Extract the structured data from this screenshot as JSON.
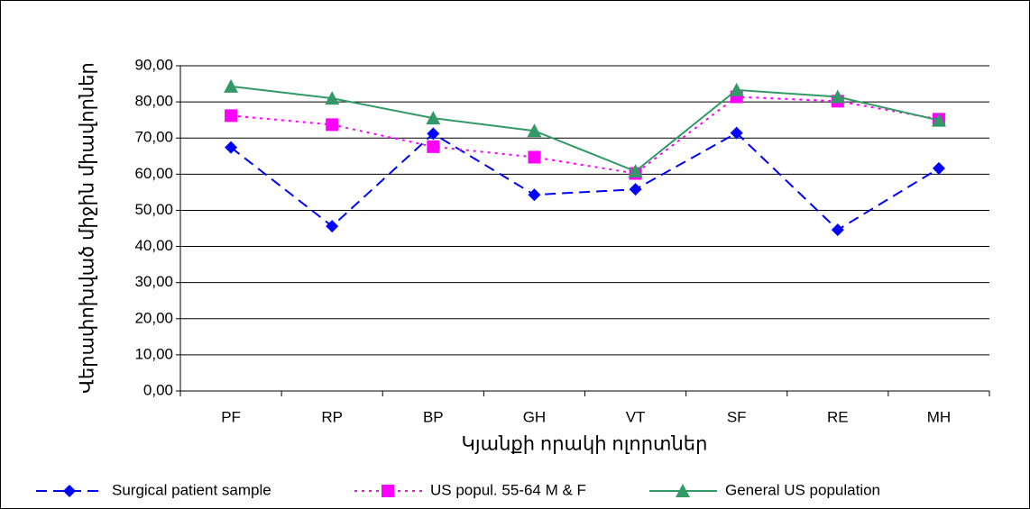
{
  "chart_data": {
    "type": "line",
    "y_label": "Վերափոխված միջին միավորներ",
    "x_label": "Կյանքի որակի ոլորտներ",
    "categories": [
      "PF",
      "RP",
      "BP",
      "GH",
      "VT",
      "SF",
      "RE",
      "MH"
    ],
    "series": [
      {
        "name": "Surgical patient sample",
        "color": "#0000ff",
        "dash": "dashed",
        "marker": "diamond",
        "values": [
          67.4,
          45.6,
          71.2,
          54.3,
          55.8,
          71.4,
          44.6,
          61.6
        ]
      },
      {
        "name": "US popul. 55-64 M & F",
        "color": "#ff00ff",
        "dash": "dotted",
        "marker": "square",
        "values": [
          76.2,
          73.7,
          67.6,
          64.7,
          60.2,
          81.4,
          80.2,
          75.2
        ]
      },
      {
        "name": "General US population",
        "color": "#339966",
        "dash": "solid",
        "marker": "triangle",
        "values": [
          84.3,
          81.0,
          75.5,
          72.0,
          60.8,
          83.3,
          81.4,
          74.9
        ]
      }
    ],
    "ylim": [
      0,
      90
    ],
    "yticks": [
      {
        "value": 0,
        "label": "0,00"
      },
      {
        "value": 10,
        "label": "10,00"
      },
      {
        "value": 20,
        "label": "20,00"
      },
      {
        "value": 30,
        "label": "30,00"
      },
      {
        "value": 40,
        "label": "40,00"
      },
      {
        "value": 50,
        "label": "50,00"
      },
      {
        "value": 60,
        "label": "60,00"
      },
      {
        "value": 70,
        "label": "70,00"
      },
      {
        "value": 80,
        "label": "80,00"
      },
      {
        "value": 90,
        "label": "90,00"
      }
    ],
    "grid": true,
    "legend": "bottom"
  }
}
